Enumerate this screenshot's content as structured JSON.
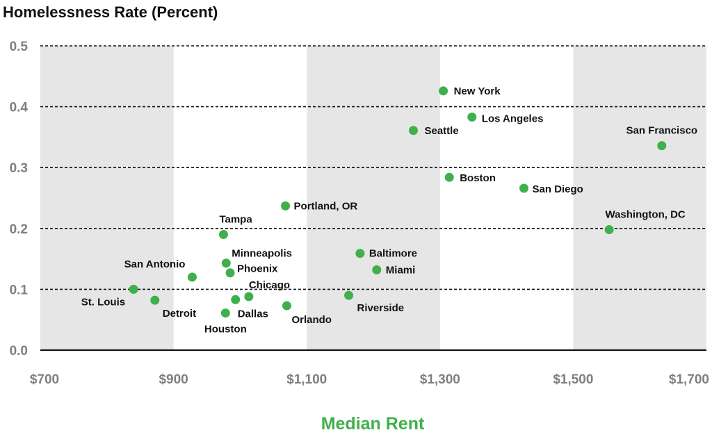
{
  "chart_data": {
    "type": "scatter",
    "title": "Homelessness Rate (Percent)",
    "xlabel": "Median Rent",
    "ylabel": "",
    "xlim": [
      700,
      1700
    ],
    "ylim": [
      0,
      0.5
    ],
    "x_ticks": [
      700,
      900,
      1100,
      1300,
      1500,
      1700
    ],
    "x_tick_labels": [
      "$700",
      "$900",
      "$1,100",
      "$1,300",
      "$1,500",
      "$1,700"
    ],
    "y_ticks": [
      0.0,
      0.1,
      0.2,
      0.3,
      0.4,
      0.5
    ],
    "y_tick_labels": [
      "0.0",
      "0.1",
      "0.2",
      "0.3",
      "0.4",
      "0.5"
    ],
    "grid": "horizontal dashed",
    "point_color": "#3fb04b",
    "band_color": "#e6e6e6",
    "points": [
      {
        "label": "St. Louis",
        "x": 840,
        "y": 0.1
      },
      {
        "label": "Detroit",
        "x": 872,
        "y": 0.082
      },
      {
        "label": "San Antonio",
        "x": 928,
        "y": 0.12
      },
      {
        "label": "Tampa",
        "x": 975,
        "y": 0.19
      },
      {
        "label": "Minneapolis",
        "x": 979,
        "y": 0.143
      },
      {
        "label": "Phoenix",
        "x": 985,
        "y": 0.127
      },
      {
        "label": "Houston",
        "x": 978,
        "y": 0.061
      },
      {
        "label": "Dallas",
        "x": 993,
        "y": 0.083
      },
      {
        "label": "Chicago",
        "x": 1013,
        "y": 0.088
      },
      {
        "label": "Portland, OR",
        "x": 1068,
        "y": 0.237
      },
      {
        "label": "Orlando",
        "x": 1070,
        "y": 0.073
      },
      {
        "label": "Riverside",
        "x": 1163,
        "y": 0.09
      },
      {
        "label": "Baltimore",
        "x": 1180,
        "y": 0.159
      },
      {
        "label": "Miami",
        "x": 1205,
        "y": 0.132
      },
      {
        "label": "Seattle",
        "x": 1260,
        "y": 0.361
      },
      {
        "label": "New York",
        "x": 1305,
        "y": 0.426
      },
      {
        "label": "Boston",
        "x": 1314,
        "y": 0.284
      },
      {
        "label": "Los Angeles",
        "x": 1348,
        "y": 0.383
      },
      {
        "label": "San Diego",
        "x": 1426,
        "y": 0.266
      },
      {
        "label": "Washington, DC",
        "x": 1554,
        "y": 0.198
      },
      {
        "label": "San Francisco",
        "x": 1633,
        "y": 0.336
      }
    ]
  }
}
